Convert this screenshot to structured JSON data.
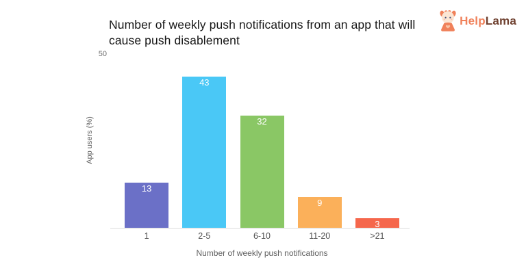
{
  "page": {
    "background": "#ffffff"
  },
  "logo": {
    "icon": "llama-mascot-icon",
    "brand_part1": "Help",
    "brand_part2": "Lama",
    "brand_color1": "#F0815A",
    "brand_color2": "#6F4130"
  },
  "chart_data": {
    "type": "bar",
    "title": "Number of weekly push notifications from an app that will cause push disablement",
    "categories": [
      "1",
      "2-5",
      "6-10",
      "11-20",
      ">21"
    ],
    "values": [
      13,
      43,
      32,
      9,
      3
    ],
    "bar_colors": [
      "#6B70C7",
      "#4AC8F6",
      "#8AC765",
      "#FBB05A",
      "#F5674C"
    ],
    "value_label_color": "#FFFFFF",
    "xlabel": "Number of weekly push notifications",
    "ylabel": "App users (%)",
    "ylim": [
      0,
      50
    ],
    "ytick_labels": [
      "50"
    ],
    "grid": false,
    "legend": "none",
    "axis_line_color": "#EDEDED",
    "tick_color": "#4F4F4F"
  }
}
